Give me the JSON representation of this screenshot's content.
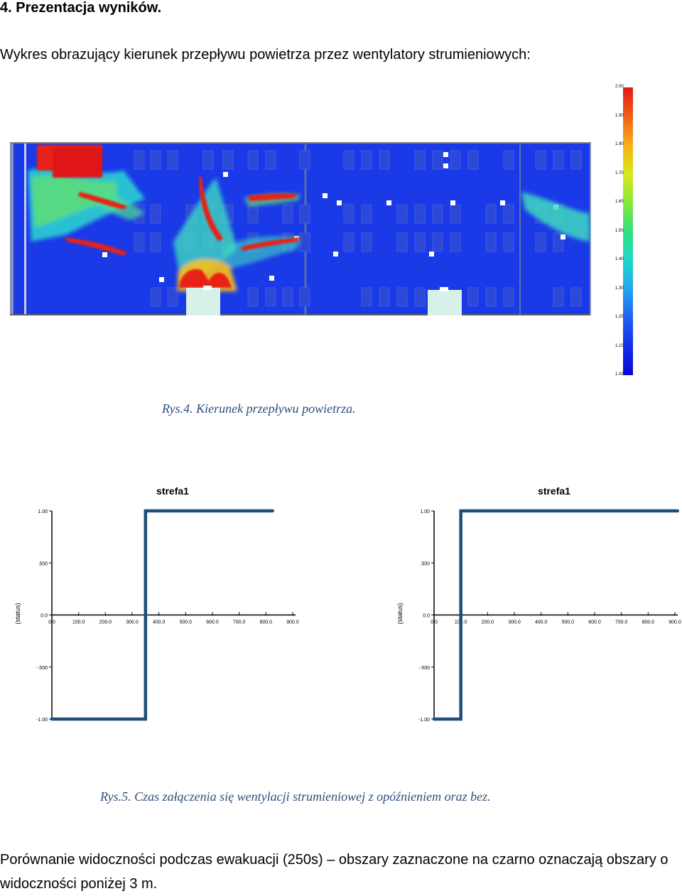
{
  "heading": "4.  Prezentacja wyników.",
  "intro": "Wykres obrazujący kierunek przepływu powietrza przez wentylatory strumieniowych:",
  "legend": {
    "labels": [
      "2.00",
      "1.90",
      "1.80",
      "1.70",
      "1.60",
      "1.50",
      "1.40",
      "1.30",
      "1.20",
      "1.10",
      "1.00"
    ]
  },
  "caption4": "Rys.4. Kierunek przepływu powietrza.",
  "caption5": "Rys.5. Czas załączenia się wentylacji strumieniowej z opóźnieniem oraz bez.",
  "paragraph": "Porównanie widoczności podczas ewakuacji (250s) – obszary zaznaczone na czarno oznaczają obszary o widoczności poniżej 3 m.",
  "colors": {
    "series": "#1f4e7a",
    "caption": "#2b4f7a",
    "map_bg": "#1a3ae8"
  },
  "chart_data": [
    {
      "type": "line",
      "title": "strefa1",
      "xlabel": "",
      "ylabel": "(status)",
      "x_ticks": [
        "0.0",
        "100.0",
        "200.0",
        "300.0",
        "400.0",
        "500.0",
        "600.0",
        "700.0",
        "800.0",
        "900.0"
      ],
      "y_ticks": [
        "1.00",
        ".500",
        "0.0",
        "-.500",
        "-1.00"
      ],
      "xlim": [
        0,
        900
      ],
      "ylim": [
        -1,
        1
      ],
      "series": [
        {
          "x": [
            0,
            350,
            350,
            825
          ],
          "y": [
            -1,
            -1,
            1,
            1
          ]
        }
      ]
    },
    {
      "type": "line",
      "title": "strefa1",
      "xlabel": "",
      "ylabel": "(status)",
      "x_ticks": [
        "0.0",
        "100.0",
        "200.0",
        "300.0",
        "400.0",
        "500.0",
        "600.0",
        "700.0",
        "800.0",
        "900.0"
      ],
      "y_ticks": [
        "1.00",
        ".500",
        "0.0",
        "-.500",
        "-1.00"
      ],
      "xlim": [
        0,
        900
      ],
      "ylim": [
        -1,
        1
      ],
      "series": [
        {
          "x": [
            0,
            100,
            100,
            910
          ],
          "y": [
            -1,
            -1,
            1,
            1
          ]
        }
      ]
    }
  ]
}
